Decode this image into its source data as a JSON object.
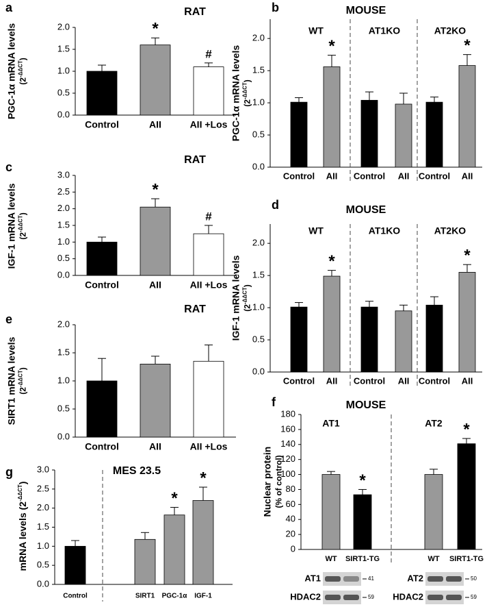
{
  "chart_data": [
    {
      "type": "bar",
      "panel": "a",
      "title": "RAT",
      "ylabel": [
        [
          "PGC-1α mRNA levels"
        ],
        [
          "(2",
          "-ΔΔCT",
          ")"
        ]
      ],
      "categories": [
        "Control",
        "AII",
        "AII +Los"
      ],
      "values": [
        1.0,
        1.6,
        1.1
      ],
      "errors": [
        0.14,
        0.16,
        0.09
      ],
      "colors": [
        "#000000",
        "#999999",
        "#ffffff"
      ],
      "annotations": [
        null,
        "*",
        "#"
      ],
      "ylim": [
        0,
        2.0
      ],
      "yticks": [
        {
          "value": 0,
          "label": "0.0"
        },
        {
          "value": 0.5,
          "label": "0.5"
        },
        {
          "value": 1,
          "label": "1.0"
        },
        {
          "value": 1.5,
          "label": "1.5"
        },
        {
          "value": 2,
          "label": "2.0"
        }
      ]
    },
    {
      "type": "bar",
      "panel": "b",
      "title": "MOUSE",
      "ylabel": [
        [
          "PGC-1α mRNA levels"
        ],
        [
          "(2",
          "-ΔΔCT",
          ")"
        ]
      ],
      "groups": [
        "WT",
        "AT1KO",
        "AT2KO"
      ],
      "categories": [
        "Control",
        "AII",
        "Control",
        "AII",
        "Control",
        "AII"
      ],
      "values": [
        1.01,
        1.56,
        1.04,
        0.98,
        1.01,
        1.58
      ],
      "errors": [
        0.07,
        0.18,
        0.13,
        0.17,
        0.08,
        0.17
      ],
      "colors": [
        "#000000",
        "#999999",
        "#000000",
        "#999999",
        "#000000",
        "#999999"
      ],
      "annotations": [
        null,
        "*",
        null,
        null,
        null,
        "*"
      ],
      "ylim": [
        0,
        2.3
      ],
      "yticks": [
        {
          "value": 0,
          "label": "0.0"
        },
        {
          "value": 0.5,
          "label": "0.5"
        },
        {
          "value": 1,
          "label": "1.0"
        },
        {
          "value": 1.5,
          "label": "1.5"
        },
        {
          "value": 2,
          "label": "2.0"
        }
      ]
    },
    {
      "type": "bar",
      "panel": "c",
      "title": "RAT",
      "ylabel": [
        [
          "IGF-1 mRNA levels"
        ],
        [
          "(2",
          "-ΔΔCT",
          ")"
        ]
      ],
      "categories": [
        "Control",
        "AII",
        "AII +Los"
      ],
      "values": [
        1.0,
        2.05,
        1.25
      ],
      "errors": [
        0.15,
        0.25,
        0.25
      ],
      "colors": [
        "#000000",
        "#999999",
        "#ffffff"
      ],
      "annotations": [
        null,
        "*",
        "#"
      ],
      "ylim": [
        0,
        3.0
      ],
      "yticks": [
        {
          "value": 0,
          "label": "0.0"
        },
        {
          "value": 0.5,
          "label": "0.5"
        },
        {
          "value": 1,
          "label": "1.0"
        },
        {
          "value": 1.5,
          "label": "1.5"
        },
        {
          "value": 2,
          "label": "2.0"
        },
        {
          "value": 2.5,
          "label": "2.5"
        },
        {
          "value": 3,
          "label": "3.0"
        }
      ]
    },
    {
      "type": "bar",
      "panel": "d",
      "title": "MOUSE",
      "ylabel": [
        [
          "IGF-1 mRNA levels"
        ],
        [
          "(2",
          "-ΔΔCT",
          ")"
        ]
      ],
      "groups": [
        "WT",
        "AT1KO",
        "AT2KO"
      ],
      "categories": [
        "Control",
        "AII",
        "Control",
        "AII",
        "Control",
        "AII"
      ],
      "values": [
        1.01,
        1.49,
        1.01,
        0.95,
        1.04,
        1.55
      ],
      "errors": [
        0.07,
        0.09,
        0.09,
        0.09,
        0.13,
        0.12
      ],
      "colors": [
        "#000000",
        "#999999",
        "#000000",
        "#999999",
        "#000000",
        "#999999"
      ],
      "annotations": [
        null,
        "*",
        null,
        null,
        null,
        "*"
      ],
      "ylim": [
        0,
        2.3
      ],
      "yticks": [
        {
          "value": 0,
          "label": "0.0"
        },
        {
          "value": 0.5,
          "label": "0.5"
        },
        {
          "value": 1,
          "label": "1.0"
        },
        {
          "value": 1.5,
          "label": "1.5"
        },
        {
          "value": 2,
          "label": "2.0"
        }
      ]
    },
    {
      "type": "bar",
      "panel": "e",
      "title": "RAT",
      "ylabel": [
        [
          "SIRT1 mRNA levels"
        ],
        [
          "(2",
          "-ΔΔCT",
          ")"
        ]
      ],
      "categories": [
        "Control",
        "AII",
        "AII +Los"
      ],
      "values": [
        1.0,
        1.3,
        1.35
      ],
      "errors": [
        0.4,
        0.14,
        0.29
      ],
      "colors": [
        "#000000",
        "#999999",
        "#ffffff"
      ],
      "annotations": [
        null,
        null,
        null
      ],
      "ylim": [
        0,
        2.0
      ],
      "yticks": [
        {
          "value": 0,
          "label": "0.0"
        },
        {
          "value": 0.5,
          "label": "0.5"
        },
        {
          "value": 1,
          "label": "1.0"
        },
        {
          "value": 1.5,
          "label": "1.5"
        },
        {
          "value": 2,
          "label": "2.0"
        }
      ]
    },
    {
      "type": "bar",
      "panel": "f",
      "title": "MOUSE",
      "ylabel": [
        [
          "Nuclear protein"
        ],
        [
          "(% of control)"
        ]
      ],
      "groups": [
        "AT1",
        "AT2"
      ],
      "categories": [
        "WT",
        "SIRT1-TG",
        "WT",
        "SIRT1-TG"
      ],
      "values": [
        100,
        73,
        100,
        141
      ],
      "errors": [
        4,
        7,
        7,
        7
      ],
      "colors": [
        "#999999",
        "#000000",
        "#999999",
        "#000000"
      ],
      "annotations": [
        null,
        "*",
        null,
        "*"
      ],
      "ylim": [
        0,
        180
      ],
      "yticks": [
        0,
        20,
        40,
        60,
        80,
        100,
        120,
        140,
        160,
        180
      ],
      "blots": [
        {
          "label": "AT1",
          "marker": "41"
        },
        {
          "label": "HDAC2",
          "marker": "59"
        },
        {
          "label": "AT2",
          "marker": "50"
        },
        {
          "label": "HDAC2",
          "marker": "59"
        }
      ]
    },
    {
      "type": "bar",
      "panel": "g",
      "title": "MES 23.5",
      "ylabel": [
        [
          "mRNA levels (2",
          "-ΔΔCT",
          ")"
        ]
      ],
      "categories": [
        "Control",
        "SIRT1",
        "PGC-1α",
        "IGF-1"
      ],
      "values": [
        1.0,
        1.18,
        1.82,
        2.2
      ],
      "errors": [
        0.15,
        0.18,
        0.2,
        0.35
      ],
      "colors": [
        "#000000",
        "#999999",
        "#999999",
        "#999999"
      ],
      "annotations": [
        null,
        null,
        "*",
        "*"
      ],
      "ylim": [
        0,
        3.0
      ],
      "yticks": [
        {
          "value": 0,
          "label": "0.0"
        },
        {
          "value": 0.5,
          "label": "0.5"
        },
        {
          "value": 1,
          "label": "1.0"
        },
        {
          "value": 1.5,
          "label": "1.5"
        },
        {
          "value": 2,
          "label": "2.0"
        },
        {
          "value": 2.5,
          "label": "2.5"
        },
        {
          "value": 3,
          "label": "3.0"
        }
      ]
    }
  ]
}
